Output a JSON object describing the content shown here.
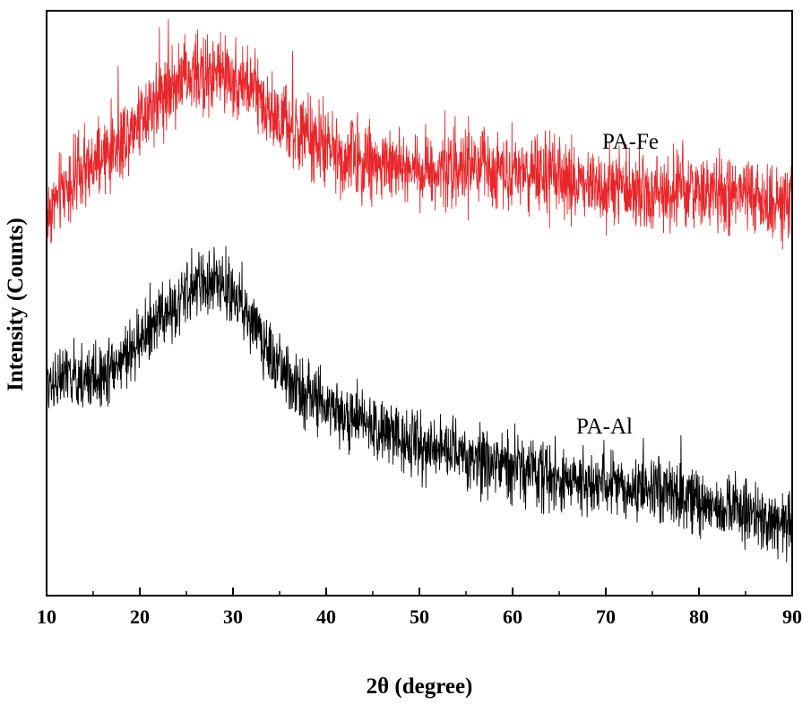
{
  "chart_data": {
    "type": "line",
    "title": "",
    "xlabel": "2θ (degree)",
    "ylabel": "Intensity (Counts)",
    "xlim": [
      10,
      90
    ],
    "ylim": [
      0,
      100
    ],
    "xticks": [
      "10",
      "20",
      "30",
      "40",
      "50",
      "60",
      "70",
      "80",
      "90"
    ],
    "yticks_visible": false,
    "grid": false,
    "legend": "inline labels",
    "series": [
      {
        "name": "PA-Fe",
        "color": "#e8262a",
        "noise": 5.5,
        "x": [
          10,
          12,
          15,
          18,
          21,
          24,
          27,
          29,
          31,
          33,
          35,
          38,
          42,
          45,
          50,
          55,
          60,
          65,
          70,
          75,
          80,
          85,
          90
        ],
        "y": [
          65,
          70,
          73,
          78,
          84,
          88,
          89,
          89,
          88,
          85,
          81,
          78,
          75,
          74,
          73,
          73,
          73,
          71,
          70,
          69,
          69,
          68,
          67
        ]
      },
      {
        "name": "PA-Al",
        "color": "#000000",
        "noise": 4.5,
        "x": [
          10,
          12,
          15,
          18,
          21,
          24,
          26,
          28,
          30,
          32,
          34,
          36,
          40,
          45,
          50,
          55,
          60,
          65,
          70,
          75,
          80,
          85,
          90
        ],
        "y": [
          37,
          37,
          37,
          40,
          45,
          50,
          53,
          54,
          52,
          47,
          41,
          37,
          32,
          29,
          26,
          24,
          22,
          20,
          19,
          18,
          16,
          14,
          12
        ]
      }
    ]
  }
}
